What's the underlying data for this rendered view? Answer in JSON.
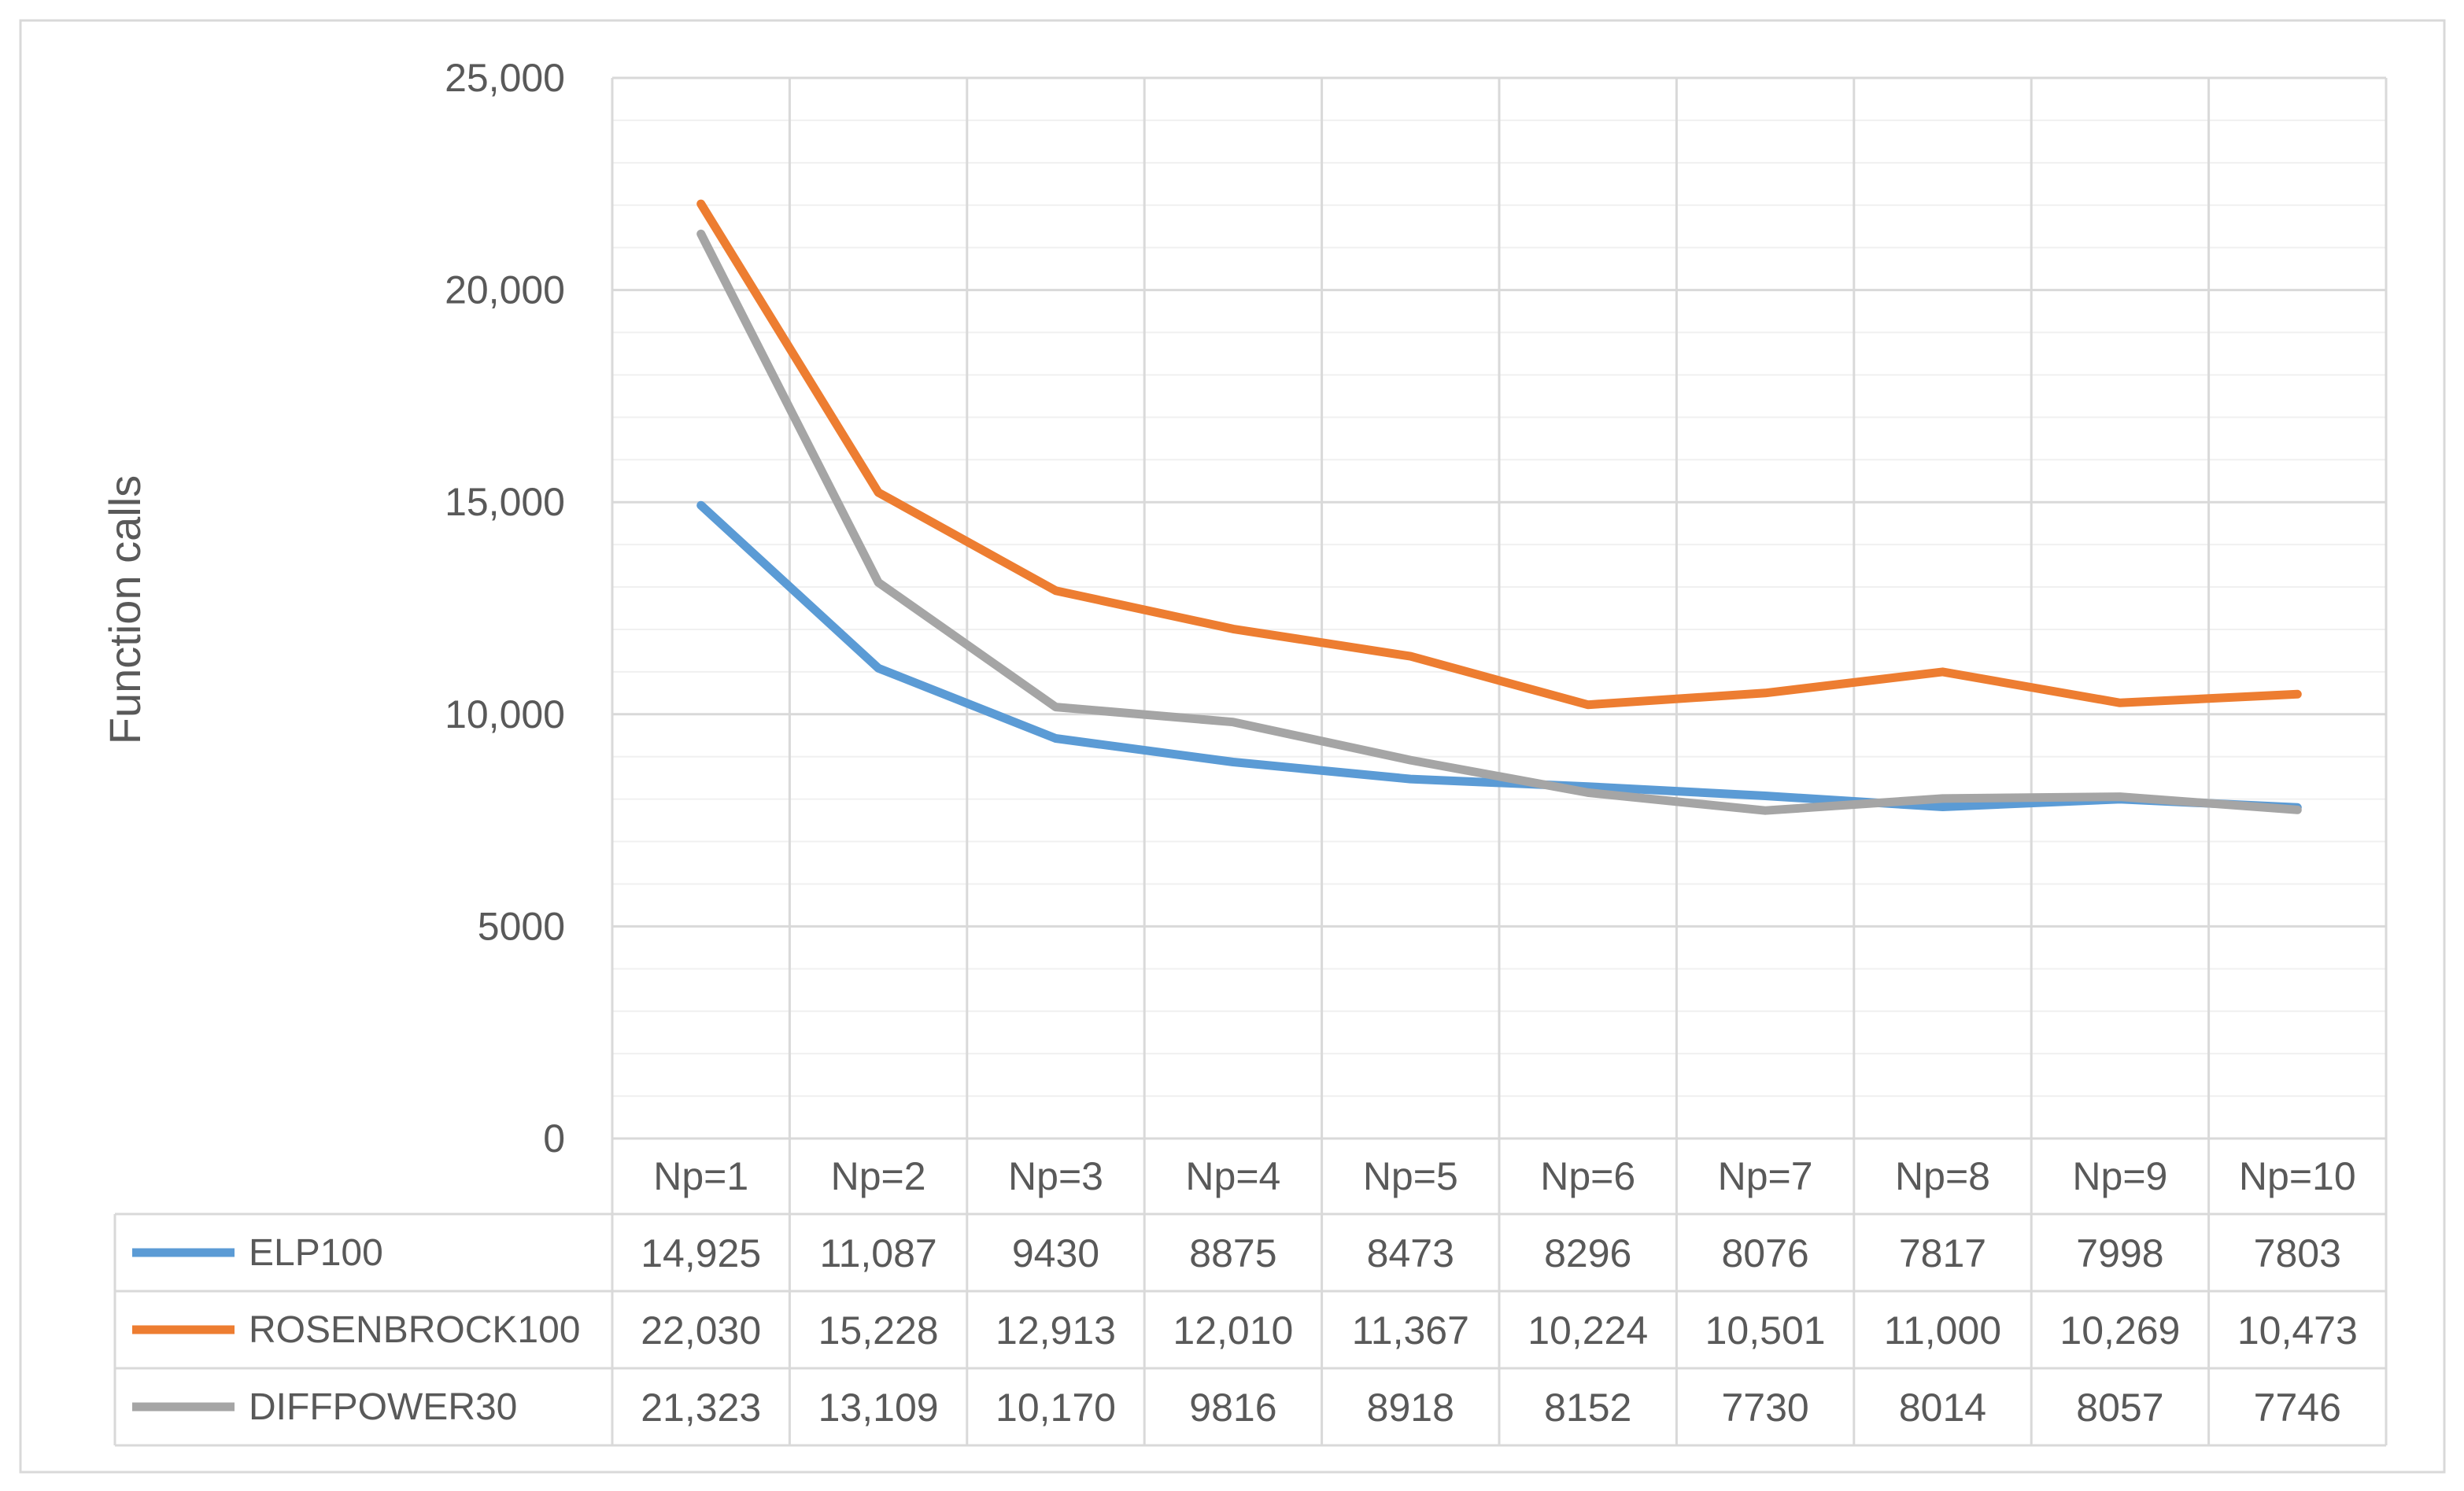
{
  "chart_data": {
    "type": "line",
    "title": "",
    "xlabel": "",
    "ylabel": "Function calls",
    "ylim": [
      0,
      25000
    ],
    "y_ticks": [
      {
        "value": 0,
        "label": "0"
      },
      {
        "value": 5000,
        "label": "5000"
      },
      {
        "value": 10000,
        "label": "10,000"
      },
      {
        "value": 15000,
        "label": "15,000"
      },
      {
        "value": 20000,
        "label": "20,000"
      },
      {
        "value": 25000,
        "label": "25,000"
      }
    ],
    "categories": [
      "Np=1",
      "Np=2",
      "Np=3",
      "Np=4",
      "Np=5",
      "Np=6",
      "Np=7",
      "Np=8",
      "Np=9",
      "Np=10"
    ],
    "grid": true,
    "legend": "data-table",
    "series": [
      {
        "name": "ELP100",
        "color": "#5B9BD5",
        "values": [
          14925,
          11087,
          9430,
          8875,
          8473,
          8296,
          8076,
          7817,
          7998,
          7803
        ],
        "labels": [
          "14,925",
          "11,087",
          "9430",
          "8875",
          "8473",
          "8296",
          "8076",
          "7817",
          "7998",
          "7803"
        ]
      },
      {
        "name": "ROSENBROCK100",
        "color": "#ED7D31",
        "values": [
          22030,
          15228,
          12913,
          12010,
          11367,
          10224,
          10501,
          11000,
          10269,
          10473
        ],
        "labels": [
          "22,030",
          "15,228",
          "12,913",
          "12,010",
          "11,367",
          "10,224",
          "10,501",
          "11,000",
          "10,269",
          "10,473"
        ]
      },
      {
        "name": "DIFFPOWER30",
        "color": "#A5A5A5",
        "values": [
          21323,
          13109,
          10170,
          9816,
          8918,
          8152,
          7730,
          8014,
          8057,
          7746
        ],
        "labels": [
          "21,323",
          "13,109",
          "10,170",
          "9816",
          "8918",
          "8152",
          "7730",
          "8014",
          "8057",
          "7746"
        ]
      }
    ]
  }
}
